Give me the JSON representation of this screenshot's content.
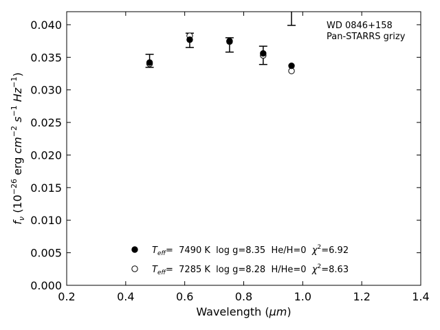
{
  "chart_data": {
    "type": "scatter",
    "xlabel_main": "Wavelength (",
    "xlabel_unit": "μm",
    "xlabel_end": ")",
    "ylabel": {
      "pre": "f",
      "sub": "ν",
      "mid": " (10",
      "exp1": "−26",
      "unit1": " erg ",
      "cm": "cm",
      "exp2": "−2",
      "s": "s",
      "exp3": "−1",
      "hz": "Hz",
      "exp4": "−1",
      "end": ")"
    },
    "xlim": [
      0.2,
      1.4
    ],
    "ylim": [
      0.0,
      0.042
    ],
    "xticks": [
      "0.2",
      "0.4",
      "0.6",
      "0.8",
      "1.0",
      "1.2",
      "1.4"
    ],
    "yticks": [
      "0.000",
      "0.005",
      "0.010",
      "0.015",
      "0.020",
      "0.025",
      "0.030",
      "0.035",
      "0.040"
    ],
    "annotation": [
      "WD 0846+158",
      "Pan-STARRS grizy"
    ],
    "observed": {
      "x": [
        0.481,
        0.617,
        0.752,
        0.866,
        0.962
      ],
      "y": [
        0.03445,
        0.0376,
        0.0369,
        0.0353,
        0.0419
      ],
      "yerr": [
        0.001,
        0.0011,
        0.0011,
        0.0014,
        0.002
      ]
    },
    "series": [
      {
        "name": "T_eff= 7490 K log g=8.35 He/H=0 χ2=6.92",
        "marker": "filled",
        "x": [
          0.481,
          0.617,
          0.752,
          0.866,
          0.962
        ],
        "y": [
          0.0342,
          0.0377,
          0.0375,
          0.0356,
          0.0337
        ]
      },
      {
        "name": "T_eff= 7285 K log g=8.28 H/He=0 χ2=8.63",
        "marker": "open",
        "x": [
          0.481,
          0.617,
          0.752,
          0.866,
          0.962
        ],
        "y": [
          0.034,
          0.0383,
          0.0374,
          0.0353,
          0.0329
        ]
      }
    ],
    "legend": [
      {
        "t": "T",
        "tsub": "eff",
        "rest": "=  7490 K  log g=8.35  He/H=0  ",
        "chi": "χ",
        "chiexp": "2",
        "chival": "=6.92"
      },
      {
        "t": "T",
        "tsub": "eff",
        "rest": "=  7285 K  log g=8.28  H/He=0  ",
        "chi": "χ",
        "chiexp": "2",
        "chival": "=8.63"
      }
    ],
    "legend_position": "lower-center",
    "grid": false
  }
}
